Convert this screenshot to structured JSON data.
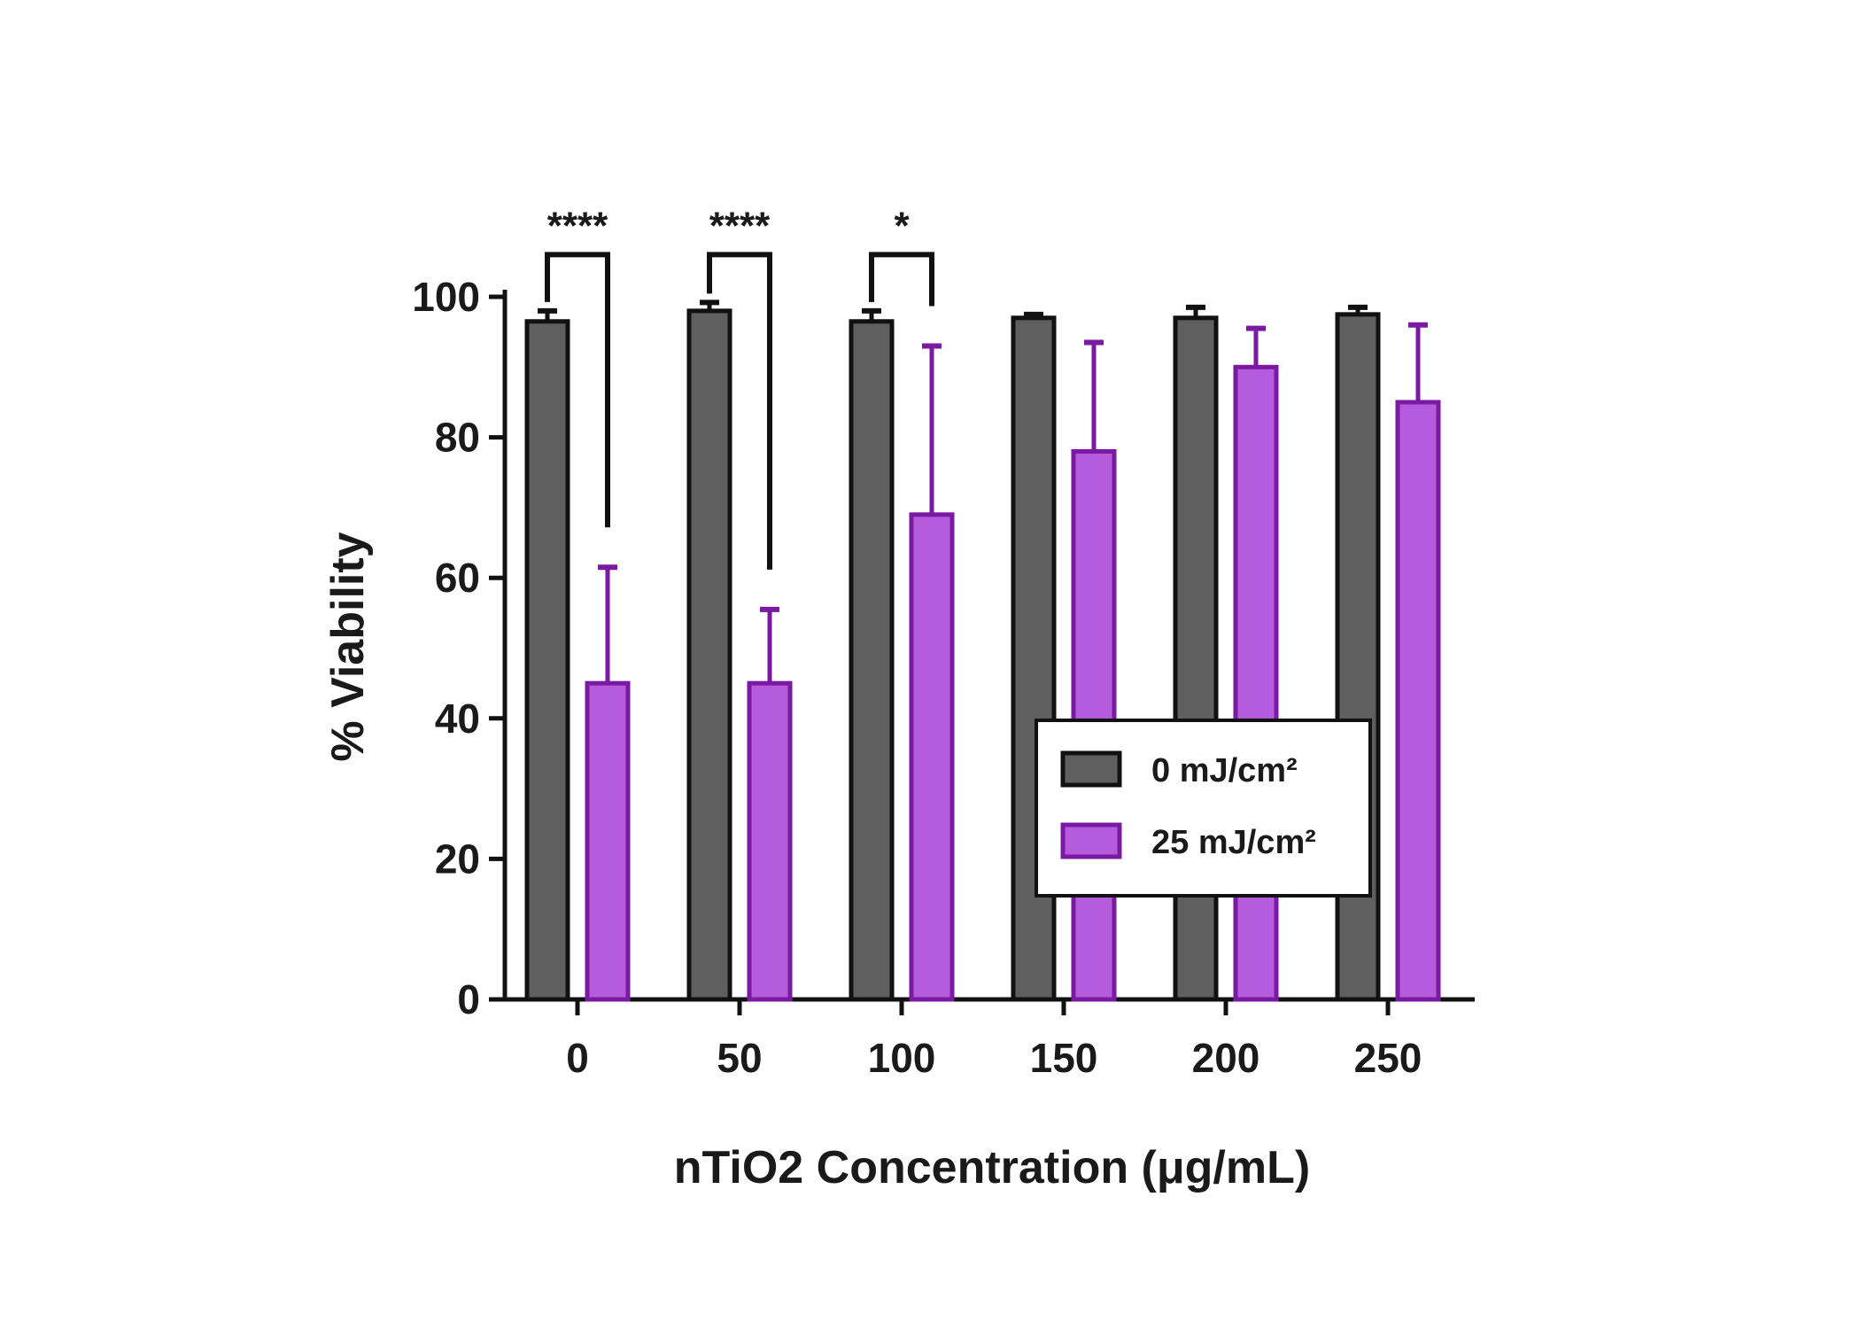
{
  "chart_data": {
    "type": "bar",
    "title": "",
    "xlabel": "nTiO2 Concentration (μg/mL)",
    "ylabel": "% Viability",
    "ylim": [
      0,
      100
    ],
    "yticks": [
      0,
      20,
      40,
      60,
      80,
      100
    ],
    "categories": [
      "0",
      "50",
      "100",
      "150",
      "200",
      "250"
    ],
    "series": [
      {
        "name": "0 mJ/cm²",
        "color": "#5f5f5f",
        "edge_color": "#111111",
        "values": [
          96.5,
          98,
          96.5,
          97,
          97,
          97.5
        ],
        "errors": [
          1.5,
          1.2,
          1.5,
          0.5,
          1.5,
          1
        ]
      },
      {
        "name": "25 mJ/cm²",
        "color": "#b45cdc",
        "edge_color": "#7a1aa2",
        "values": [
          45,
          45,
          69,
          78,
          90,
          85
        ],
        "errors": [
          16.5,
          10.5,
          24,
          15.5,
          5.5,
          11
        ]
      }
    ],
    "significance": [
      {
        "category": "0",
        "label": "****"
      },
      {
        "category": "50",
        "label": "****"
      },
      {
        "category": "100",
        "label": "*"
      }
    ],
    "legend": {
      "position": "bottom-right"
    },
    "grid": false
  }
}
